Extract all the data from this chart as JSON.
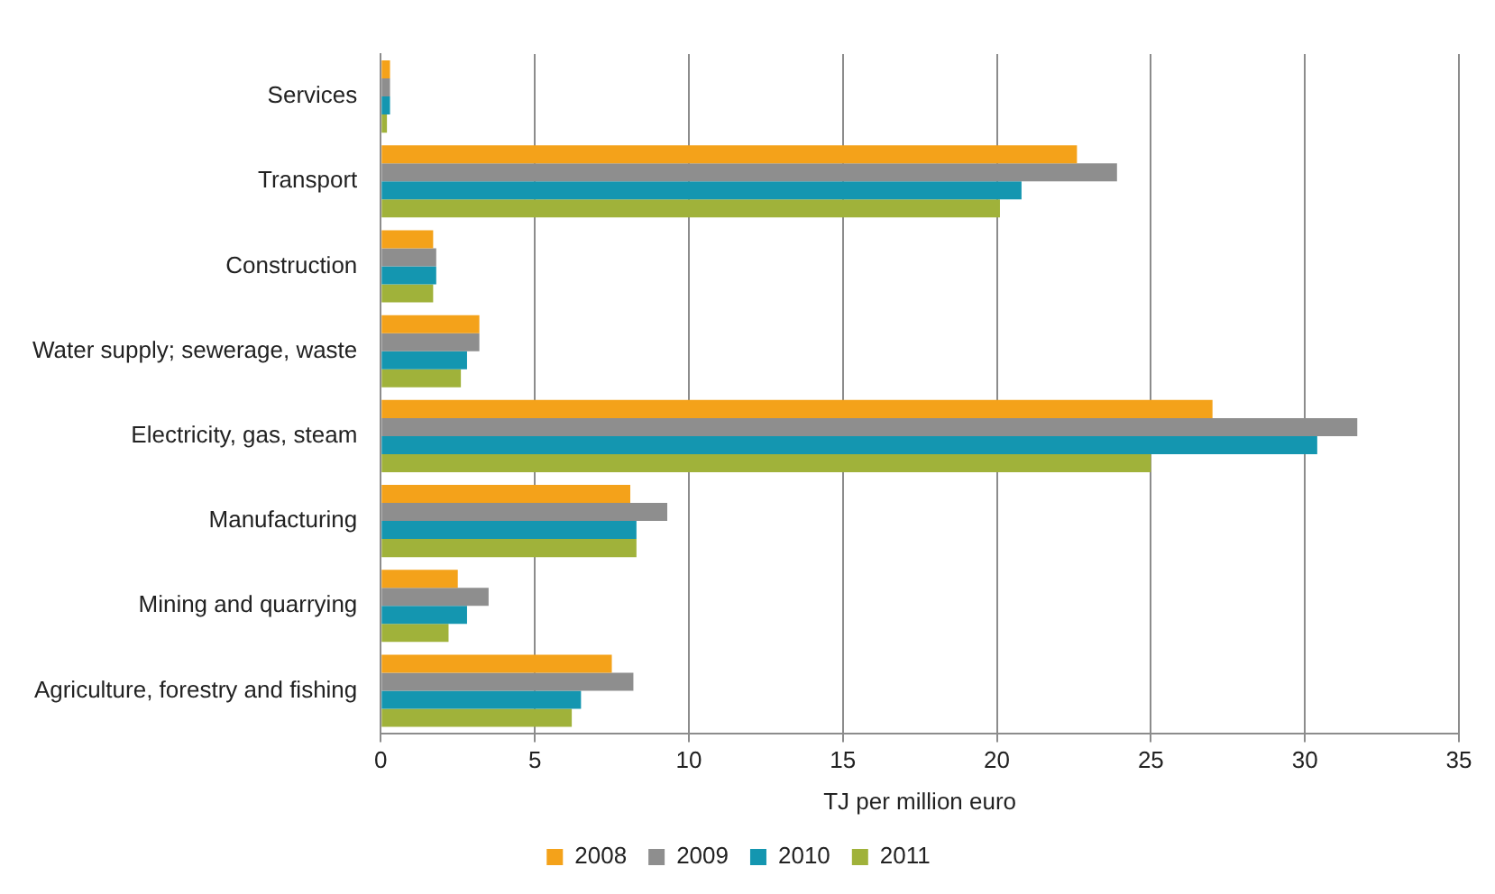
{
  "chart_data": {
    "type": "bar",
    "orientation": "horizontal",
    "xlabel": "TJ per million euro",
    "categories": [
      "Services",
      "Transport",
      "Construction",
      "Water supply; sewerage, waste",
      "Electricity, gas, steam",
      "Manufacturing",
      "Mining and quarrying",
      "Agriculture, forestry and fishing"
    ],
    "series": [
      {
        "name": "2008",
        "color": "#f4a21a",
        "values": [
          0.3,
          22.6,
          1.7,
          3.2,
          27.0,
          8.1,
          2.5,
          7.5
        ]
      },
      {
        "name": "2009",
        "color": "#8e8e8e",
        "values": [
          0.3,
          23.9,
          1.8,
          3.2,
          31.7,
          9.3,
          3.5,
          8.2
        ]
      },
      {
        "name": "2010",
        "color": "#1496b0",
        "values": [
          0.3,
          20.8,
          1.8,
          2.8,
          30.4,
          8.3,
          2.8,
          6.5
        ]
      },
      {
        "name": "2011",
        "color": "#a0b23a",
        "values": [
          0.2,
          20.1,
          1.7,
          2.6,
          25.0,
          8.3,
          2.2,
          6.2
        ]
      }
    ],
    "xlim": [
      0,
      35
    ],
    "xticks": [
      0,
      5,
      10,
      15,
      20,
      25,
      30,
      35
    ],
    "grid": "x",
    "legend": "bottom"
  }
}
